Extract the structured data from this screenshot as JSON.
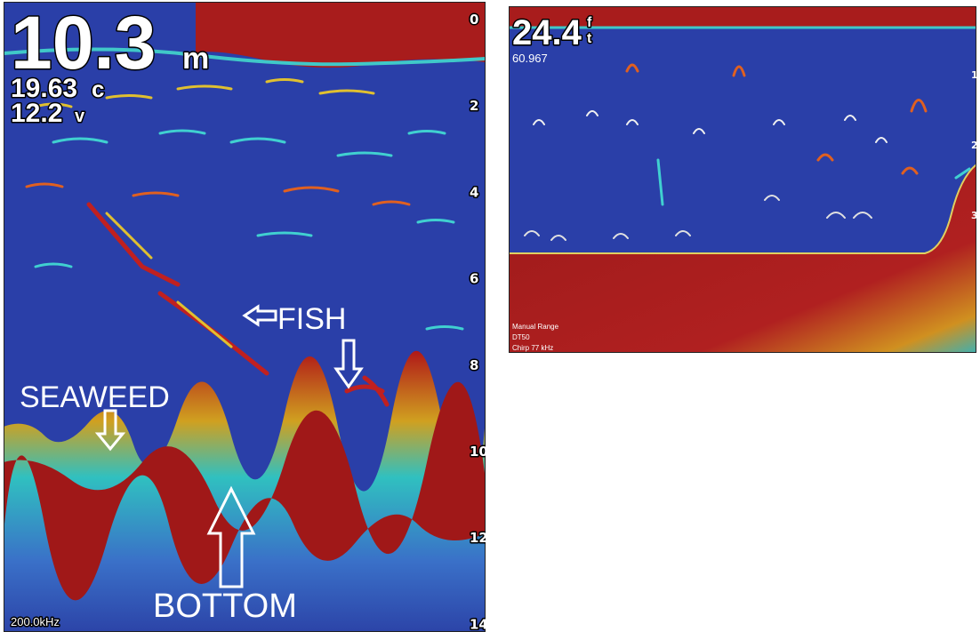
{
  "left_panel": {
    "depth": "10.3",
    "depth_unit": "m",
    "temperature": "19.63",
    "temperature_unit": "c",
    "voltage": "12.2",
    "voltage_unit": "v",
    "scale": [
      0,
      2,
      4,
      6,
      8,
      10,
      12,
      14
    ],
    "labels": {
      "fish": "FISH",
      "seaweed": "SEAWEED",
      "bottom": "BOTTOM"
    },
    "frequency": "200.0kHz"
  },
  "right_panel": {
    "depth": "24.4",
    "depth_unit_top": "f",
    "depth_unit_bottom": "t",
    "secondary": "60.967",
    "scale": [
      1,
      2,
      3
    ],
    "info": [
      "Manual Range",
      "DT50",
      "Chirp 77 kHz"
    ]
  }
}
